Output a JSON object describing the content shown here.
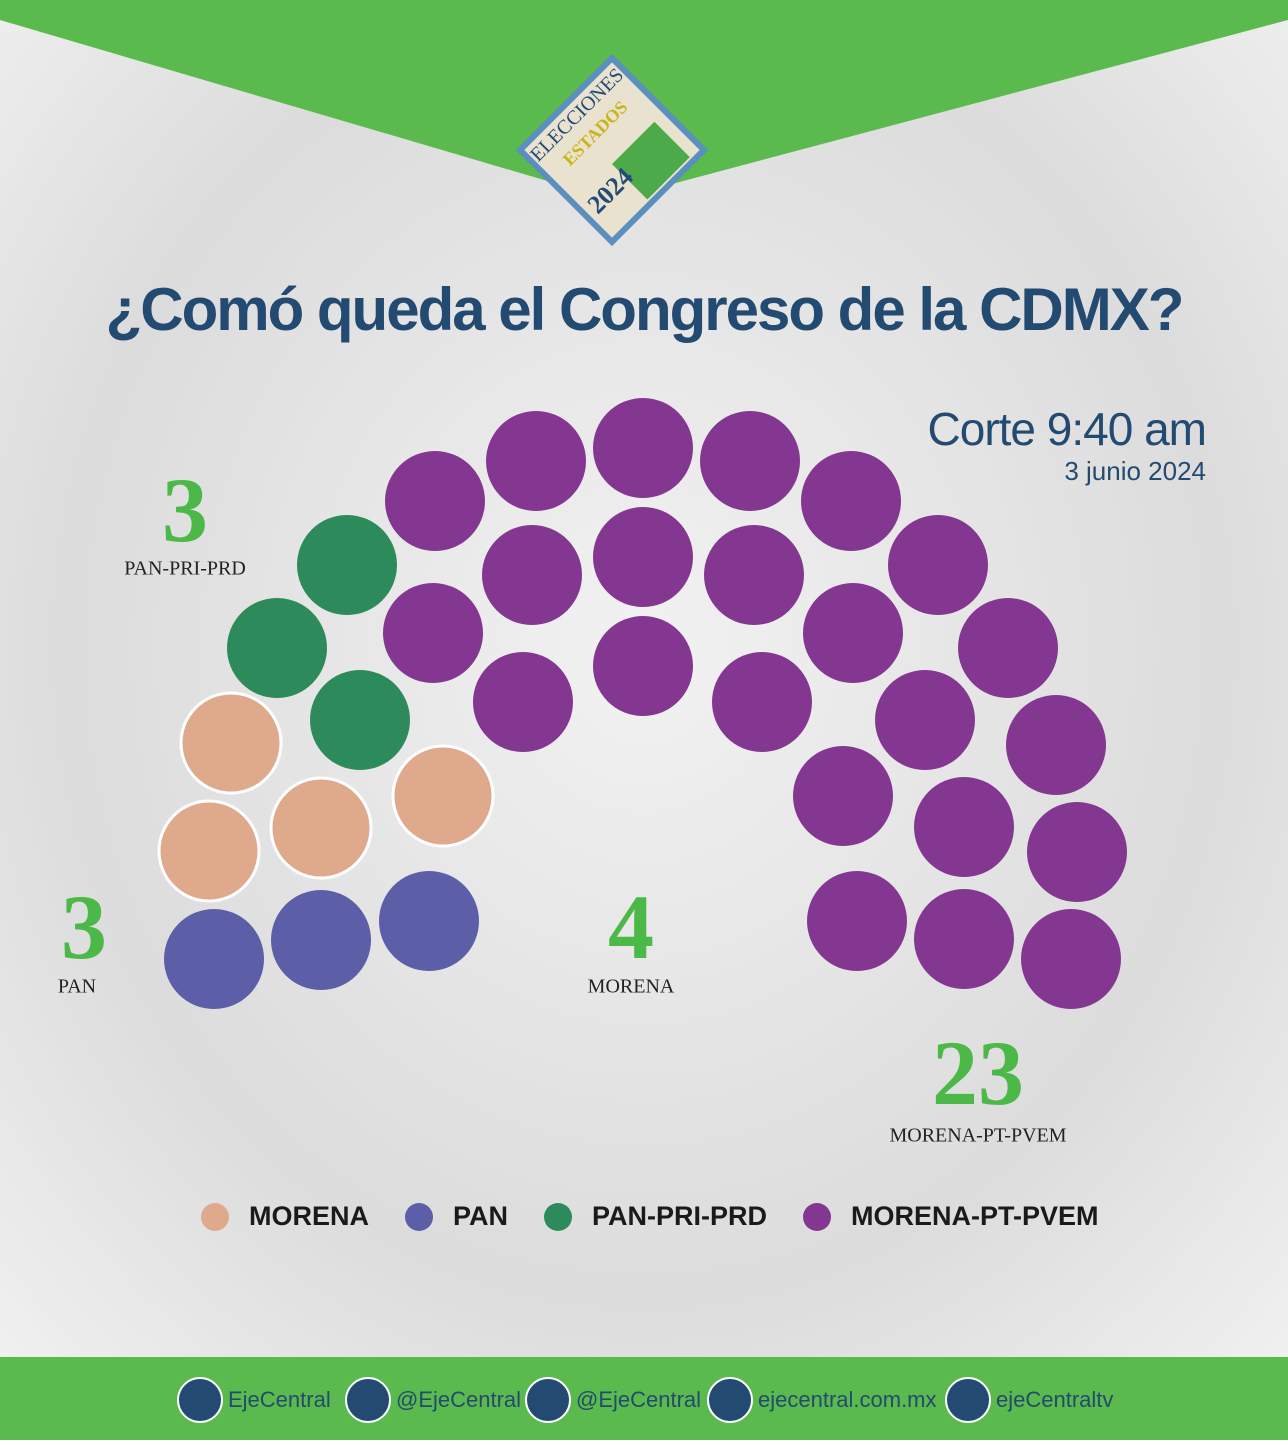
{
  "chart_data": {
    "type": "parliament",
    "title": "¿Comó queda el Congreso de la CDMX?",
    "subtitle": "Corte 9:40 am",
    "date": "3 junio 2024",
    "series": [
      {
        "name": "MORENA",
        "color": "#dfa98c",
        "value": 4
      },
      {
        "name": "PAN",
        "color": "#5c5ea8",
        "value": 3
      },
      {
        "name": "PAN-PRI-PRD",
        "color": "#2d8a5a",
        "value": 3
      },
      {
        "name": "MORENA-PT-PVEM",
        "color": "#833791",
        "value": 23
      }
    ]
  },
  "logo": {
    "line1": "ELECCIONES",
    "line2": "ESTADOS",
    "year": "2024"
  },
  "footer": [
    "EjeCentral",
    "@EjeCentral",
    "@EjeCentral",
    "ejecentral.com.mx",
    "ejeCentraltv"
  ]
}
